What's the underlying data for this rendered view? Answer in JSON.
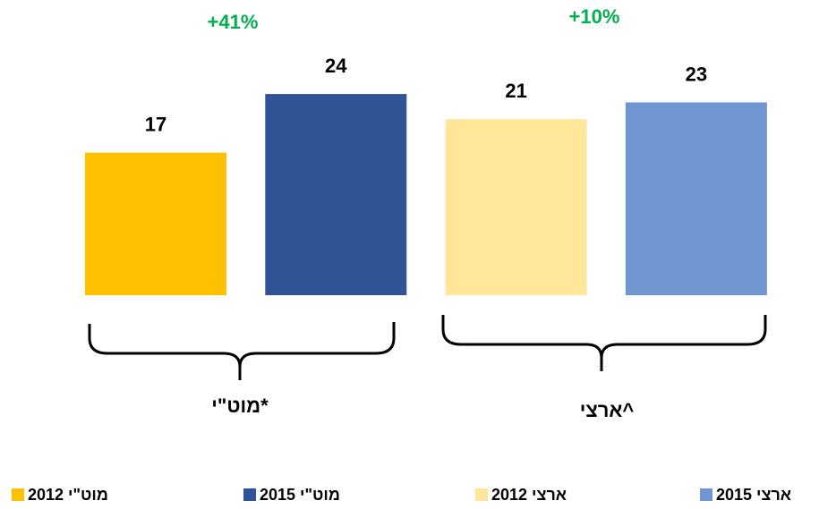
{
  "chart_data": {
    "type": "bar",
    "categories": [
      "מוט\"י*",
      "ארצי^"
    ],
    "series": [
      {
        "name": "מוט\"י 2012",
        "color": "#FFC000",
        "values": [
          17,
          null
        ]
      },
      {
        "name": "מוט\"י 2015",
        "color": "#2F5597",
        "values": [
          24,
          null
        ]
      },
      {
        "name": "ארצי 2012",
        "color": "#FFE699",
        "values": [
          null,
          21
        ]
      },
      {
        "name": "ארצי 2015",
        "color": "#7096D1",
        "values": [
          null,
          23
        ]
      }
    ],
    "annotations": [
      {
        "text": "+41%",
        "color": "#00B050"
      },
      {
        "text": "+10%",
        "color": "#00B050"
      }
    ],
    "ylim": [
      0,
      35
    ]
  }
}
